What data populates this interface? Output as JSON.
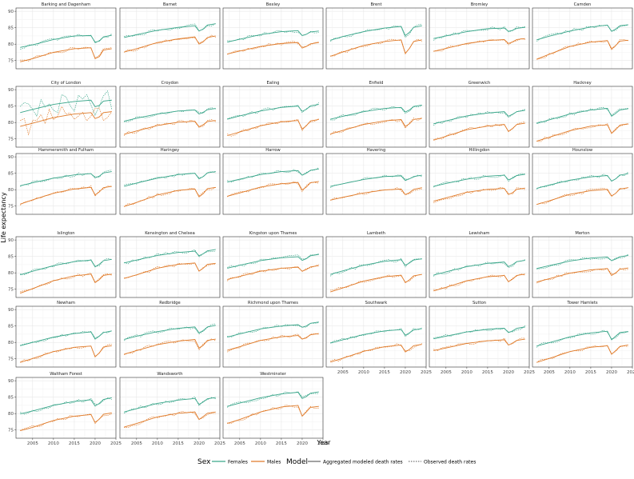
{
  "chart_data": {
    "type": "line",
    "title": "",
    "xlabel": "Year",
    "ylabel": "Life expectancy",
    "xlim": [
      2001,
      2025
    ],
    "ylim": [
      72.5,
      91
    ],
    "x_ticks": [
      2005,
      2010,
      2015,
      2020,
      2025
    ],
    "y_ticks": [
      75,
      80,
      85,
      90
    ],
    "grid": true,
    "legend": {
      "position": "bottom",
      "sex_title": "Sex",
      "sex_entries": [
        {
          "label": "Females",
          "color": "#3aa68a"
        },
        {
          "label": "Males",
          "color": "#e07b2a"
        }
      ],
      "model_title": "Model",
      "model_entries": [
        {
          "label": "Aggregated modeled death rates",
          "style": "solid"
        },
        {
          "label": "Observed death rates",
          "style": "dotted"
        }
      ]
    },
    "colors": {
      "Females": "#3aa68a",
      "Males": "#e07b2a"
    },
    "panel_order": [
      "Barking and Dagenham",
      "Barnet",
      "Bexley",
      "Brent",
      "Bromley",
      "Camden",
      "City of London",
      "Croydon",
      "Ealing",
      "Enfield",
      "Greenwich",
      "Hackney",
      "Hammersmith and Fulham",
      "Haringey",
      "Harrow",
      "Havering",
      "Hillingdon",
      "Hounslow",
      "Islington",
      "Kensington and Chelsea",
      "Kingston upon Thames",
      "Lambeth",
      "Lewisham",
      "Merton",
      "Newham",
      "Redbridge",
      "Richmond upon Thames",
      "Southwark",
      "Sutton",
      "Tower Hamlets",
      "Waltham Forest",
      "Wandsworth",
      "Westminster"
    ],
    "x": [
      2002,
      2005,
      2010,
      2015,
      2019,
      2020,
      2021,
      2022,
      2024
    ],
    "panels": [
      {
        "name": "Barking and Dagenham",
        "females": [
          79.0,
          79.8,
          81.4,
          82.5,
          82.6,
          80.6,
          80.9,
          82.2,
          82.7
        ],
        "males": [
          74.6,
          75.6,
          77.5,
          78.6,
          78.9,
          75.6,
          76.2,
          78.2,
          78.6
        ]
      },
      {
        "name": "Barnet",
        "females": [
          82.0,
          82.9,
          84.2,
          85.1,
          85.6,
          84.0,
          84.6,
          85.8,
          86.2
        ],
        "males": [
          77.6,
          78.6,
          80.5,
          81.6,
          82.2,
          80.0,
          80.7,
          82.0,
          82.5
        ]
      },
      {
        "name": "Bexley",
        "females": [
          80.6,
          81.5,
          82.9,
          83.8,
          84.1,
          82.6,
          83.0,
          83.7,
          84.0
        ],
        "males": [
          77.0,
          77.9,
          79.3,
          80.2,
          80.5,
          78.8,
          79.3,
          80.1,
          80.5
        ]
      },
      {
        "name": "Brent",
        "females": [
          81.2,
          82.3,
          83.8,
          84.9,
          85.4,
          82.6,
          83.6,
          85.1,
          85.6
        ],
        "males": [
          76.3,
          77.6,
          79.6,
          80.8,
          81.3,
          77.2,
          78.7,
          80.8,
          81.3
        ]
      },
      {
        "name": "Bromley",
        "females": [
          81.7,
          82.5,
          83.8,
          84.7,
          84.9,
          83.9,
          84.2,
          84.8,
          85.1
        ],
        "males": [
          77.8,
          78.7,
          80.2,
          81.1,
          81.4,
          80.2,
          80.7,
          81.4,
          81.7
        ]
      },
      {
        "name": "Camden",
        "females": [
          81.3,
          82.4,
          84.0,
          85.2,
          85.8,
          83.9,
          84.6,
          85.6,
          85.9
        ],
        "males": [
          75.4,
          76.9,
          79.3,
          80.6,
          81.1,
          78.6,
          79.6,
          80.9,
          81.2
        ]
      },
      {
        "name": "City of London",
        "females": [
          83.0,
          84.0,
          85.5,
          86.4,
          86.8,
          84.8,
          85.2,
          86.5,
          86.8
        ],
        "males": [
          78.8,
          79.8,
          81.5,
          82.6,
          83.0,
          81.2,
          81.7,
          83.0,
          83.3
        ]
      },
      {
        "name": "Croydon",
        "females": [
          80.4,
          81.3,
          82.6,
          83.5,
          83.8,
          82.6,
          83.1,
          83.9,
          84.3
        ],
        "males": [
          76.4,
          77.4,
          79.1,
          80.1,
          80.4,
          78.7,
          79.3,
          80.3,
          80.6
        ]
      },
      {
        "name": "Ealing",
        "females": [
          81.0,
          82.0,
          83.5,
          84.6,
          85.0,
          83.4,
          84.0,
          85.1,
          85.5
        ],
        "males": [
          76.0,
          77.1,
          79.0,
          80.2,
          80.6,
          78.0,
          79.0,
          80.5,
          80.9
        ]
      },
      {
        "name": "Enfield",
        "females": [
          81.0,
          81.9,
          83.3,
          84.3,
          84.6,
          83.2,
          83.8,
          84.9,
          85.3
        ],
        "males": [
          76.5,
          77.6,
          79.4,
          80.5,
          80.9,
          78.8,
          79.6,
          80.9,
          81.3
        ]
      },
      {
        "name": "Greenwich",
        "females": [
          79.6,
          80.5,
          82.0,
          82.9,
          83.3,
          81.9,
          82.5,
          83.3,
          83.7
        ],
        "males": [
          74.6,
          75.8,
          77.8,
          78.9,
          79.4,
          77.3,
          78.2,
          79.4,
          79.8
        ]
      },
      {
        "name": "Hackney",
        "females": [
          79.7,
          80.8,
          82.6,
          83.8,
          84.3,
          81.9,
          82.8,
          83.8,
          84.2
        ],
        "males": [
          74.3,
          75.5,
          77.5,
          78.9,
          79.3,
          76.7,
          77.8,
          79.2,
          79.6
        ]
      },
      {
        "name": "Hammersmith and Fulham",
        "females": [
          81.2,
          82.1,
          83.5,
          84.5,
          84.9,
          83.6,
          84.1,
          85.1,
          85.5
        ],
        "males": [
          75.6,
          76.9,
          78.9,
          80.2,
          80.7,
          78.4,
          79.3,
          80.6,
          81.0
        ]
      },
      {
        "name": "Haringey",
        "females": [
          81.0,
          82.0,
          83.5,
          84.6,
          85.0,
          83.3,
          84.0,
          85.1,
          85.5
        ],
        "males": [
          74.9,
          76.1,
          78.4,
          79.8,
          80.2,
          77.8,
          78.8,
          80.3,
          80.7
        ]
      },
      {
        "name": "Harrow",
        "females": [
          82.3,
          83.2,
          84.6,
          85.5,
          85.8,
          84.4,
          85.0,
          85.9,
          86.3
        ],
        "males": [
          78.0,
          79.0,
          80.8,
          81.8,
          82.2,
          79.9,
          80.8,
          82.1,
          82.5
        ]
      },
      {
        "name": "Havering",
        "females": [
          81.0,
          81.8,
          83.1,
          84.0,
          84.2,
          82.8,
          83.3,
          84.0,
          84.4
        ],
        "males": [
          76.8,
          77.7,
          79.0,
          79.9,
          80.2,
          78.5,
          79.1,
          80.1,
          80.6
        ]
      },
      {
        "name": "Hillingdon",
        "females": [
          81.0,
          81.9,
          83.2,
          84.1,
          84.4,
          83.0,
          83.5,
          84.3,
          84.7
        ],
        "males": [
          76.5,
          77.5,
          79.2,
          80.1,
          80.4,
          78.5,
          79.1,
          80.1,
          80.5
        ]
      },
      {
        "name": "Hounslow",
        "females": [
          80.4,
          81.4,
          82.9,
          83.9,
          84.3,
          82.6,
          83.3,
          84.4,
          84.9
        ],
        "males": [
          75.5,
          76.6,
          78.6,
          79.7,
          80.1,
          78.1,
          78.9,
          80.2,
          80.6
        ]
      },
      {
        "name": "Islington",
        "females": [
          79.4,
          80.5,
          82.2,
          83.4,
          83.9,
          81.8,
          82.6,
          83.7,
          84.1
        ],
        "males": [
          73.8,
          75.2,
          77.6,
          79.1,
          79.6,
          77.0,
          77.9,
          79.2,
          79.6
        ]
      },
      {
        "name": "Kensington and Chelsea",
        "females": [
          83.0,
          83.9,
          85.3,
          86.2,
          86.6,
          85.2,
          85.8,
          86.7,
          87.1
        ],
        "males": [
          78.3,
          79.4,
          81.4,
          82.6,
          83.0,
          80.5,
          81.4,
          82.6,
          82.9
        ]
      },
      {
        "name": "Kingston upon Thames",
        "females": [
          81.4,
          82.3,
          83.7,
          84.6,
          84.9,
          83.8,
          84.3,
          85.2,
          85.6
        ],
        "males": [
          78.0,
          78.9,
          80.5,
          81.4,
          81.7,
          80.5,
          81.0,
          81.8,
          82.2
        ]
      },
      {
        "name": "Lambeth",
        "females": [
          79.5,
          80.6,
          82.3,
          83.5,
          84.0,
          82.3,
          83.0,
          83.9,
          84.3
        ],
        "males": [
          74.2,
          75.4,
          77.5,
          78.8,
          79.3,
          77.0,
          77.9,
          79.1,
          79.5
        ]
      },
      {
        "name": "Lewisham",
        "females": [
          79.3,
          80.3,
          81.9,
          82.9,
          83.3,
          81.9,
          82.5,
          83.4,
          83.8
        ],
        "males": [
          74.5,
          75.6,
          77.6,
          78.8,
          79.2,
          77.3,
          78.1,
          79.2,
          79.6
        ]
      },
      {
        "name": "Merton",
        "females": [
          81.3,
          82.2,
          83.6,
          84.5,
          84.8,
          83.7,
          84.2,
          84.9,
          85.3
        ],
        "males": [
          77.2,
          78.2,
          79.9,
          80.9,
          81.3,
          79.2,
          80.0,
          81.1,
          81.5
        ]
      },
      {
        "name": "Newham",
        "females": [
          79.0,
          80.0,
          81.6,
          82.7,
          83.2,
          81.0,
          81.9,
          83.0,
          83.5
        ],
        "males": [
          73.9,
          75.1,
          77.2,
          78.5,
          78.9,
          75.6,
          76.8,
          78.6,
          79.0
        ]
      },
      {
        "name": "Redbridge",
        "females": [
          80.9,
          81.9,
          83.3,
          84.3,
          84.7,
          82.9,
          83.6,
          84.7,
          85.2
        ],
        "males": [
          76.4,
          77.5,
          79.3,
          80.4,
          80.9,
          78.3,
          79.1,
          80.6,
          81.0
        ]
      },
      {
        "name": "Richmond upon Thames",
        "females": [
          81.6,
          82.6,
          84.1,
          85.0,
          85.4,
          84.6,
          85.0,
          85.8,
          86.2
        ],
        "males": [
          77.6,
          78.7,
          80.6,
          81.7,
          82.1,
          81.0,
          81.5,
          82.3,
          82.7
        ]
      },
      {
        "name": "Southwark",
        "females": [
          79.8,
          80.8,
          82.4,
          83.5,
          83.9,
          82.2,
          82.9,
          83.8,
          84.2
        ],
        "males": [
          74.0,
          75.2,
          77.3,
          78.7,
          79.2,
          77.1,
          77.9,
          79.0,
          79.4
        ]
      },
      {
        "name": "Sutton",
        "females": [
          81.1,
          81.9,
          83.2,
          84.0,
          84.3,
          83.0,
          83.5,
          84.3,
          84.7
        ],
        "males": [
          77.5,
          78.3,
          79.7,
          80.5,
          80.8,
          79.2,
          79.8,
          80.6,
          81.0
        ]
      },
      {
        "name": "Tower Hamlets",
        "females": [
          78.9,
          79.9,
          81.7,
          82.9,
          83.4,
          80.8,
          81.9,
          83.0,
          83.3
        ],
        "males": [
          73.9,
          75.1,
          77.2,
          78.5,
          79.0,
          76.4,
          77.5,
          78.8,
          79.2
        ]
      },
      {
        "name": "Waltham Forest",
        "females": [
          79.9,
          80.8,
          82.5,
          83.7,
          84.2,
          82.3,
          83.1,
          84.3,
          84.8
        ],
        "males": [
          74.8,
          75.8,
          77.9,
          79.2,
          79.7,
          77.3,
          78.3,
          79.8,
          80.2
        ]
      },
      {
        "name": "Wandsworth",
        "females": [
          80.5,
          81.5,
          83.1,
          84.1,
          84.6,
          82.8,
          83.5,
          84.5,
          84.9
        ],
        "males": [
          75.9,
          77.0,
          79.0,
          80.1,
          80.5,
          78.2,
          79.1,
          80.1,
          80.5
        ]
      },
      {
        "name": "Westminster",
        "females": [
          82.2,
          83.2,
          84.8,
          86.0,
          86.5,
          84.6,
          85.2,
          86.2,
          86.6
        ],
        "males": [
          77.0,
          78.2,
          80.5,
          82.0,
          82.5,
          79.2,
          80.5,
          81.9,
          82.2
        ]
      }
    ]
  }
}
